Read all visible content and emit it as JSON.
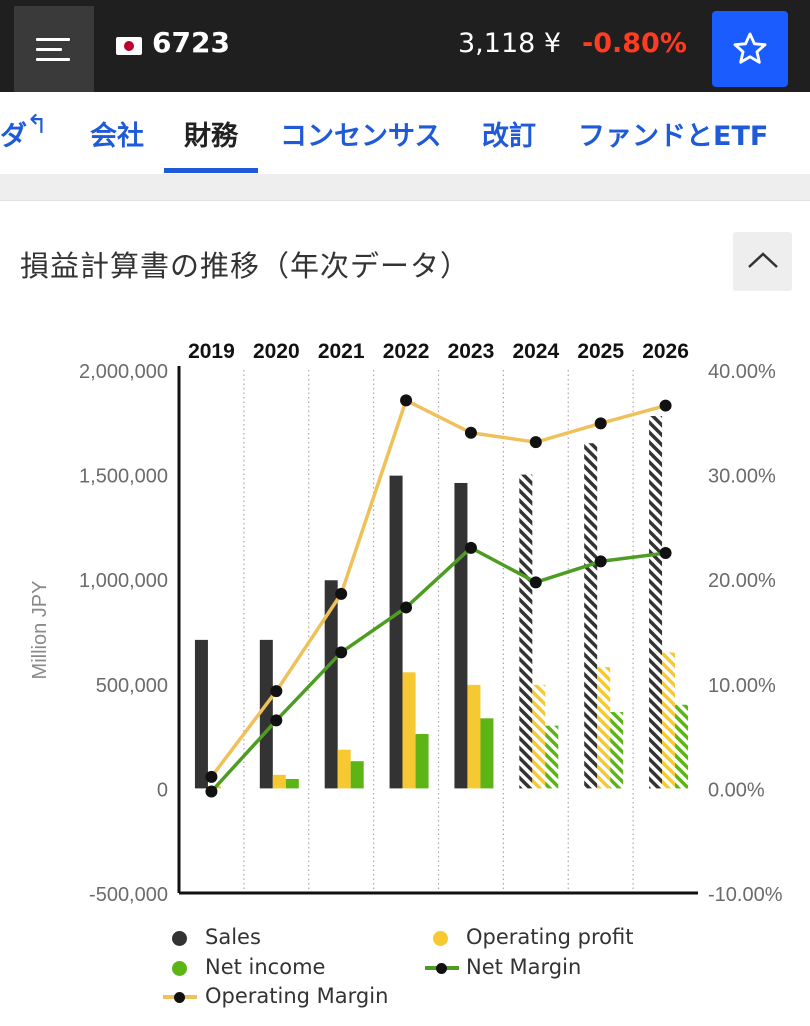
{
  "header": {
    "ticker": "6723",
    "price": "3,118 ¥",
    "change": "-0.80%",
    "menu_icon": "hamburger-menu-icon",
    "star_icon": "star-icon",
    "flag_icon": "japan-flag-icon"
  },
  "tabs": {
    "clipped_label": "ダ",
    "items": [
      {
        "label": "会社"
      },
      {
        "label": "財務",
        "active": true
      },
      {
        "label": "コンセンサス"
      },
      {
        "label": "改訂"
      },
      {
        "label": "ファンドとETF"
      }
    ]
  },
  "section": {
    "title": "損益計算書の推移（年次データ）"
  },
  "colors": {
    "sales": "#333333",
    "operating_profit": "#f6c933",
    "net_income": "#5cb416",
    "net_margin_line": "#4e9d23",
    "operating_margin_line": "#efc15a",
    "accent": "#1f5bd8",
    "negative": "#ff3b21"
  },
  "chart_data": {
    "type": "bar",
    "categories": [
      "2019",
      "2020",
      "2021",
      "2022",
      "2023",
      "2024",
      "2025",
      "2026"
    ],
    "estimated_from": "2024",
    "ylabel": "Million JPY",
    "ylim": [
      -500000,
      2000000
    ],
    "y2lim": [
      -10,
      40
    ],
    "y_ticks": [
      "2,000,000",
      "1,500,000",
      "1,000,000",
      "500,000",
      "0",
      "-500,000"
    ],
    "y2_ticks": [
      "40.00%",
      "30.00%",
      "20.00%",
      "10.00%",
      "0.00%",
      "-10.00%"
    ],
    "series": [
      {
        "name": "Sales",
        "axis": "left",
        "kind": "bar",
        "values": [
          710000,
          710000,
          995000,
          1495000,
          1460000,
          1500000,
          1650000,
          1780000
        ]
      },
      {
        "name": "Operating profit",
        "axis": "left",
        "kind": "bar",
        "values": [
          10000,
          65000,
          185000,
          555000,
          495000,
          495000,
          580000,
          650000
        ]
      },
      {
        "name": "Net income",
        "axis": "left",
        "kind": "bar",
        "values": [
          0,
          45000,
          130000,
          260000,
          335000,
          300000,
          365000,
          400000
        ]
      },
      {
        "name": "Net Margin",
        "axis": "right",
        "kind": "line",
        "values": [
          -0.3,
          6.5,
          13.0,
          17.3,
          23.0,
          19.7,
          21.7,
          22.5
        ]
      },
      {
        "name": "Operating Margin",
        "axis": "right",
        "kind": "line",
        "values": [
          1.1,
          9.3,
          18.6,
          37.1,
          34.0,
          33.1,
          34.9,
          36.6
        ]
      }
    ],
    "legend": [
      "Sales",
      "Operating profit",
      "Net income",
      "Net Margin",
      "Operating Margin"
    ],
    "legend_position": "bottom",
    "grid": "vertical-dotted"
  }
}
